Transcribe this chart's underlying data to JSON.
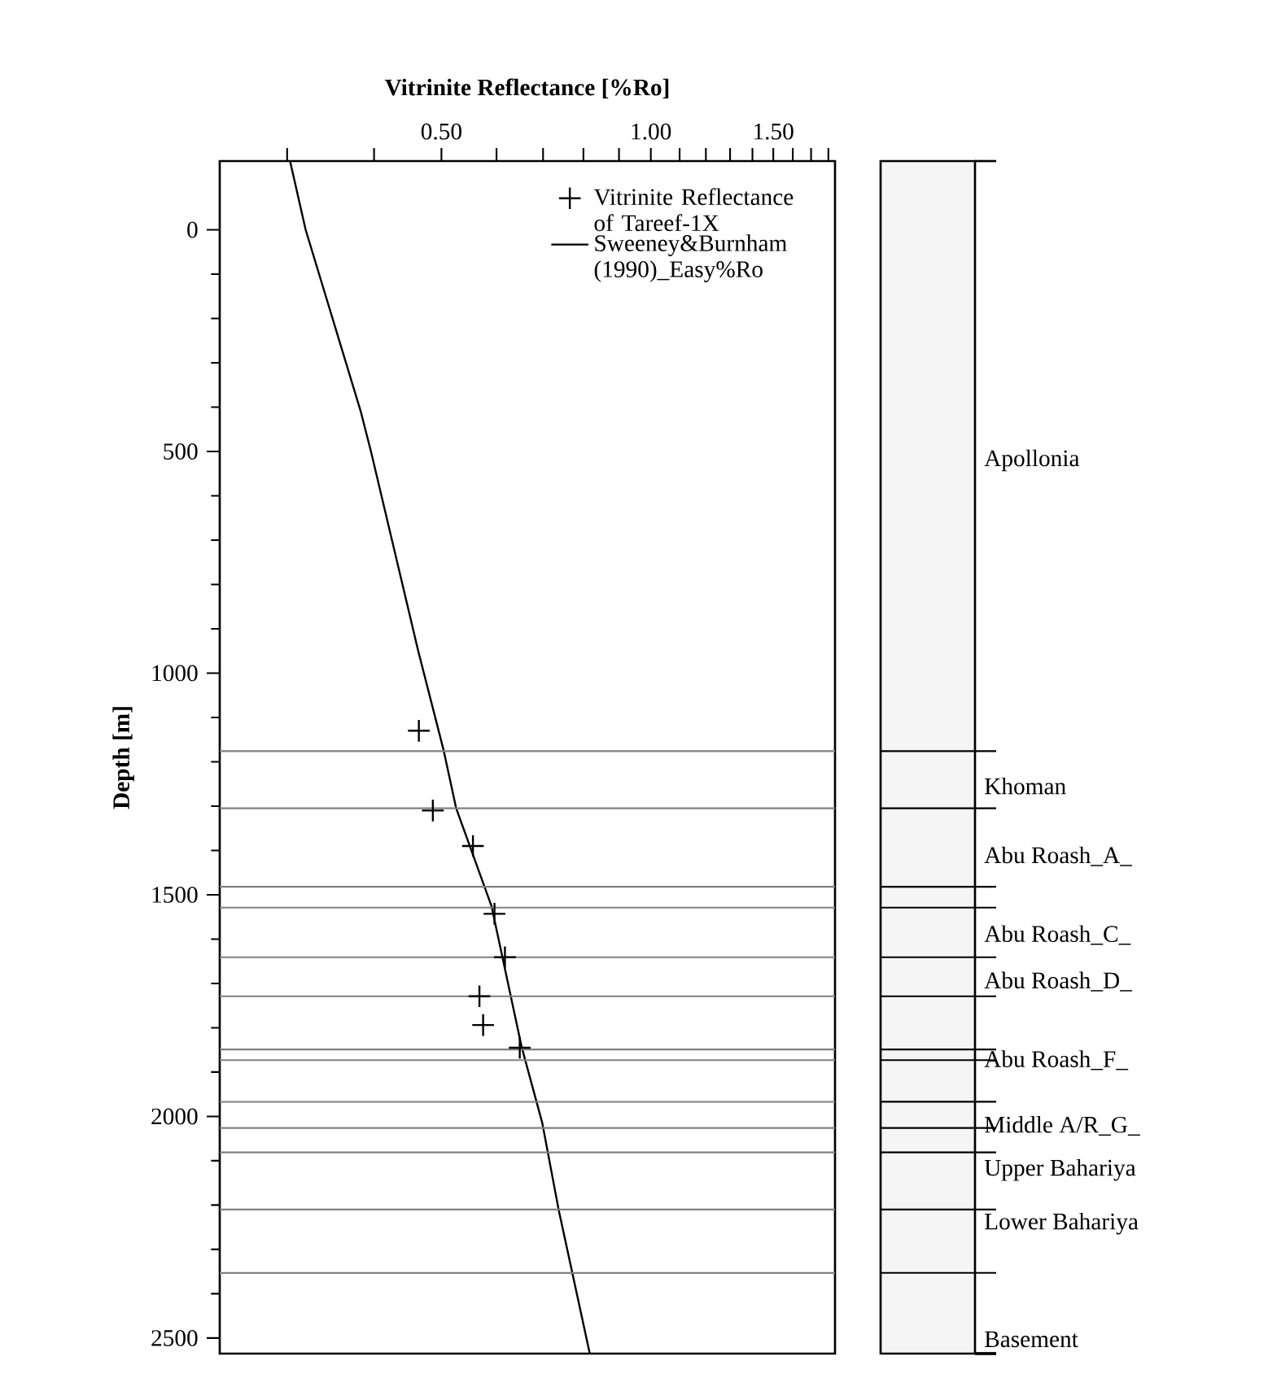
{
  "chart_data": {
    "type": "scatter",
    "xlabel": "Vitrinite Reflectance [%Ro]",
    "ylabel": "Depth [m]",
    "log": "x",
    "xlim": [
      0.24,
      1.84
    ],
    "xticks": [
      {
        "value": 0.3,
        "label": null
      },
      {
        "value": 0.4,
        "label": null
      },
      {
        "value": 0.5,
        "label": "0.50"
      },
      {
        "value": 0.6,
        "label": null
      },
      {
        "value": 0.7,
        "label": null
      },
      {
        "value": 0.8,
        "label": null
      },
      {
        "value": 0.9,
        "label": null
      },
      {
        "value": 1.0,
        "label": "1.00"
      },
      {
        "value": 1.1,
        "label": null
      },
      {
        "value": 1.2,
        "label": null
      },
      {
        "value": 1.3,
        "label": null
      },
      {
        "value": 1.4,
        "label": null
      },
      {
        "value": 1.5,
        "label": "1.50"
      },
      {
        "value": 1.6,
        "label": null
      },
      {
        "value": 1.7,
        "label": null
      },
      {
        "value": 1.8,
        "label": null
      }
    ],
    "ylim": [
      2535,
      -155
    ],
    "yticks": [
      0,
      500,
      1000,
      1500,
      2000,
      2500
    ],
    "legend": "top right",
    "series": [
      {
        "name": "Vitrinite Reflectance of Tareef-1X",
        "marker": "cross",
        "color": "#000000",
        "x": [
          0.464,
          0.486,
          0.555,
          0.596,
          0.617,
          0.567,
          0.574,
          0.648
        ],
        "values": [
          1130,
          1310,
          1390,
          1543,
          1641,
          1729,
          1794,
          1845
        ]
      },
      {
        "name": "Sweeney&Burnham (1990)_Easy%Ro",
        "type": "line",
        "marker": "none",
        "line_style": "solid",
        "color": "#000000",
        "x": [
          0.303,
          0.319,
          0.383,
          0.396,
          0.463,
          0.504,
          0.525,
          0.59,
          0.652,
          0.698,
          0.737,
          0.817
        ],
        "values": [
          -154,
          0,
          411,
          500,
          950,
          1176,
          1305,
          1525,
          1843,
          2014,
          2210,
          2535
        ]
      }
    ],
    "ref_lines": [
      {
        "axis": "y",
        "value": 1176,
        "color": "#808080"
      },
      {
        "axis": "y",
        "value": 1305,
        "color": "#808080"
      },
      {
        "axis": "y",
        "value": 1482,
        "color": "#808080"
      },
      {
        "axis": "y",
        "value": 1529,
        "color": "#808080"
      },
      {
        "axis": "y",
        "value": 1641,
        "color": "#808080"
      },
      {
        "axis": "y",
        "value": 1729,
        "color": "#808080"
      },
      {
        "axis": "y",
        "value": 1849,
        "color": "#808080"
      },
      {
        "axis": "y",
        "value": 1873,
        "color": "#808080"
      },
      {
        "axis": "y",
        "value": 1967,
        "color": "#808080"
      },
      {
        "axis": "y",
        "value": 2026,
        "color": "#808080"
      },
      {
        "axis": "y",
        "value": 2081,
        "color": "#808080"
      },
      {
        "axis": "y",
        "value": 2210,
        "color": "#808080"
      },
      {
        "axis": "y",
        "value": 2353,
        "color": "#808080"
      }
    ],
    "annotations": [
      "Apollonia",
      "Khoman",
      "Abu Roash_A_",
      "Abu Roash_C_",
      "Abu Roash_D_",
      "Abu Roash_F_",
      "Middle A/R_G_",
      "Upper Bahariya",
      "Lower Bahariya",
      "Basement"
    ]
  }
}
